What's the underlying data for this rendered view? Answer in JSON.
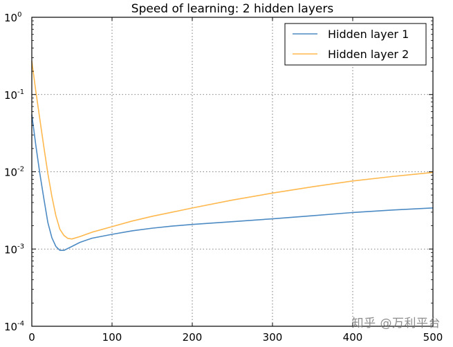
{
  "chart_data": {
    "type": "line",
    "title": "Speed of learning: 2 hidden layers",
    "xlabel": "",
    "ylabel": "",
    "xlim": [
      0,
      500
    ],
    "ylim": [
      0.0001,
      1
    ],
    "yscale": "log",
    "grid": true,
    "legend_position": "top-right",
    "x_ticks": [
      "0",
      "100",
      "200",
      "300",
      "400",
      "500"
    ],
    "y_ticks": [
      {
        "base": "10",
        "exp": "0"
      },
      {
        "base": "10",
        "exp": "-1"
      },
      {
        "base": "10",
        "exp": "-2"
      },
      {
        "base": "10",
        "exp": "-3"
      },
      {
        "base": "10",
        "exp": "-4"
      }
    ],
    "series": [
      {
        "name": "Hidden layer 1",
        "color": "#4c8ac4",
        "x": [
          0,
          5,
          10,
          15,
          20,
          25,
          30,
          35,
          40,
          50,
          60,
          75,
          100,
          125,
          150,
          175,
          200,
          250,
          300,
          350,
          400,
          450,
          500
        ],
        "y": [
          0.055,
          0.022,
          0.0095,
          0.0045,
          0.0022,
          0.0014,
          0.00108,
          0.00096,
          0.00096,
          0.00108,
          0.00122,
          0.00138,
          0.00155,
          0.00172,
          0.00186,
          0.00198,
          0.00208,
          0.00226,
          0.00246,
          0.0027,
          0.00297,
          0.0032,
          0.0034
        ]
      },
      {
        "name": "Hidden layer 2",
        "color": "#ffb84d",
        "x": [
          0,
          5,
          10,
          15,
          20,
          25,
          30,
          35,
          40,
          45,
          50,
          60,
          75,
          100,
          125,
          150,
          175,
          200,
          250,
          300,
          350,
          400,
          450,
          500
        ],
        "y": [
          0.27,
          0.11,
          0.048,
          0.021,
          0.0095,
          0.0048,
          0.0027,
          0.0018,
          0.0015,
          0.00137,
          0.00135,
          0.00145,
          0.00165,
          0.00195,
          0.0023,
          0.00265,
          0.003,
          0.0034,
          0.0043,
          0.0053,
          0.0064,
          0.0076,
          0.0087,
          0.0098
        ]
      }
    ]
  },
  "watermark": "知乎 @万利平台"
}
